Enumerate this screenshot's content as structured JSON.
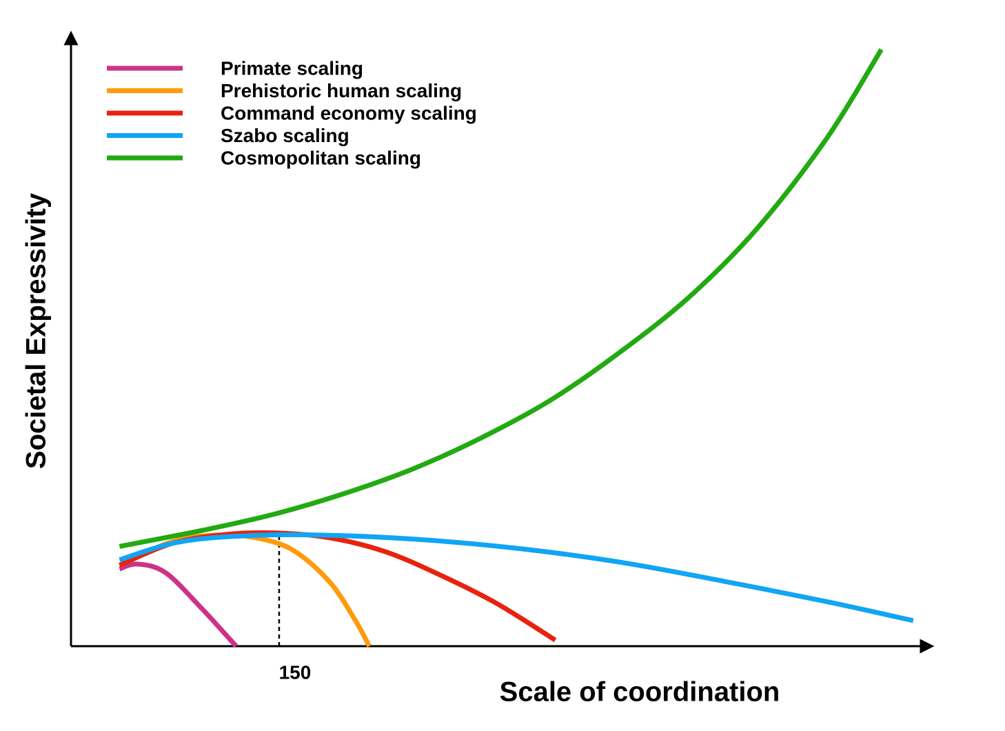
{
  "chart_data": {
    "type": "line",
    "xlabel": "Scale of coordination",
    "ylabel": "Societal Expressivity",
    "xlim": [
      0,
      617
    ],
    "ylim": [
      0,
      100
    ],
    "xticks": [
      150
    ],
    "series": [
      {
        "name": "Primate scaling",
        "color": "#cc3388",
        "x": [
          35,
          48,
          68,
          93,
          119
        ],
        "values": [
          12.7,
          13.5,
          12.1,
          6.5,
          0
        ]
      },
      {
        "name": "Prehistoric human scaling",
        "color": "#ff9a0a",
        "x": [
          35,
          73,
          108,
          138,
          162,
          187,
          205,
          215
        ],
        "values": [
          13.3,
          17.2,
          18.3,
          17.6,
          15.5,
          10.4,
          4.2,
          0
        ]
      },
      {
        "name": "Command economy scaling",
        "color": "#e8220f",
        "x": [
          35,
          73,
          113,
          150,
          187,
          227,
          267,
          307,
          349
        ],
        "values": [
          13.3,
          16.9,
          18.4,
          18.6,
          17.8,
          15.5,
          11.6,
          7.0,
          1.0
        ]
      },
      {
        "name": "Szabo scaling",
        "color": "#10a5f5",
        "x": [
          35,
          73,
          113,
          172,
          247,
          321,
          396,
          470,
          545,
          607
        ],
        "values": [
          14.2,
          16.9,
          18.0,
          18.3,
          17.6,
          16.1,
          13.8,
          10.7,
          7.3,
          4.2
        ]
      },
      {
        "name": "Cosmopolitan scaling",
        "color": "#22aa11",
        "x": [
          35,
          98,
          148,
          197,
          247,
          297,
          346,
          396,
          446,
          495,
          545,
          584
        ],
        "values": [
          16.4,
          19.2,
          21.8,
          25.1,
          29.2,
          34.4,
          40.5,
          48.4,
          57.5,
          68.8,
          83.6,
          98.1
        ]
      }
    ]
  }
}
